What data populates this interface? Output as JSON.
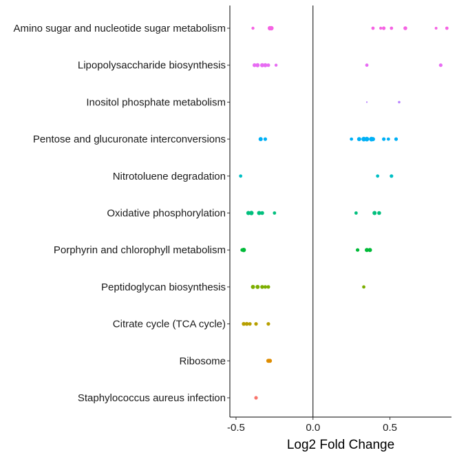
{
  "chart_data": {
    "type": "scatter",
    "title": "",
    "xlabel": "Log2 Fold Change",
    "ylabel": "",
    "xlim": [
      -0.54,
      0.9
    ],
    "x_ticks": [
      -0.5,
      0.0,
      0.5
    ],
    "x_tick_labels": [
      "-0.5",
      "0.0",
      "0.5"
    ],
    "vline_at": 0,
    "grid": false,
    "legend": "none",
    "categories": [
      "Amino sugar and nucleotide sugar metabolism",
      "Lipopolysaccharide biosynthesis",
      "Inositol phosphate metabolism",
      "Pentose and glucuronate interconversions",
      "Nitrotoluene degradation",
      "Oxidative phosphorylation",
      "Porphyrin and chlorophyll metabolism",
      "Peptidoglycan biosynthesis",
      "Citrate cycle (TCA cycle)",
      "Ribosome",
      "Staphylococcus aureus infection"
    ],
    "series": [
      {
        "category": "Amino sugar and nucleotide sugar metabolism",
        "color": "#F564E3",
        "points": [
          {
            "x": -0.39,
            "s": 2.2
          },
          {
            "x": -0.28,
            "s": 3.2
          },
          {
            "x": -0.27,
            "s": 3.2
          },
          {
            "x": 0.39,
            "s": 2.4
          },
          {
            "x": 0.44,
            "s": 2.2
          },
          {
            "x": 0.46,
            "s": 2.6
          },
          {
            "x": 0.51,
            "s": 2.4
          },
          {
            "x": 0.6,
            "s": 2.8
          },
          {
            "x": 0.8,
            "s": 2.0
          },
          {
            "x": 0.87,
            "s": 2.4
          }
        ]
      },
      {
        "category": "Lipopolysaccharide biosynthesis",
        "color": "#E76BF3",
        "points": [
          {
            "x": -0.38,
            "s": 2.8
          },
          {
            "x": -0.36,
            "s": 3.0
          },
          {
            "x": -0.33,
            "s": 3.0
          },
          {
            "x": -0.31,
            "s": 3.0
          },
          {
            "x": -0.29,
            "s": 2.6
          },
          {
            "x": -0.24,
            "s": 2.2
          },
          {
            "x": 0.35,
            "s": 2.4
          },
          {
            "x": 0.83,
            "s": 2.6
          }
        ]
      },
      {
        "category": "Inositol phosphate metabolism",
        "color": "#B983FF",
        "points": [
          {
            "x": 0.35,
            "s": 1.1
          },
          {
            "x": 0.56,
            "s": 1.8
          }
        ]
      },
      {
        "category": "Pentose and glucuronate interconversions",
        "color": "#00B0F6",
        "points": [
          {
            "x": -0.34,
            "s": 3.0
          },
          {
            "x": -0.31,
            "s": 2.6
          },
          {
            "x": 0.25,
            "s": 2.4
          },
          {
            "x": 0.3,
            "s": 3.0
          },
          {
            "x": 0.33,
            "s": 3.4
          },
          {
            "x": 0.35,
            "s": 3.4
          },
          {
            "x": 0.38,
            "s": 3.4
          },
          {
            "x": 0.39,
            "s": 3.0
          },
          {
            "x": 0.46,
            "s": 2.6
          },
          {
            "x": 0.49,
            "s": 2.4
          },
          {
            "x": 0.54,
            "s": 2.6
          }
        ]
      },
      {
        "category": "Nitrotoluene degradation",
        "color": "#00BFC4",
        "points": [
          {
            "x": -0.47,
            "s": 2.4
          },
          {
            "x": 0.42,
            "s": 2.4
          },
          {
            "x": 0.51,
            "s": 2.6
          }
        ]
      },
      {
        "category": "Oxidative phosphorylation",
        "color": "#00BF7D",
        "points": [
          {
            "x": -0.42,
            "s": 3.0
          },
          {
            "x": -0.4,
            "s": 3.2
          },
          {
            "x": -0.35,
            "s": 3.0
          },
          {
            "x": -0.33,
            "s": 2.8
          },
          {
            "x": -0.25,
            "s": 2.4
          },
          {
            "x": 0.28,
            "s": 2.4
          },
          {
            "x": 0.4,
            "s": 3.0
          },
          {
            "x": 0.43,
            "s": 2.8
          }
        ]
      },
      {
        "category": "Porphyrin and chlorophyll metabolism",
        "color": "#00BA38",
        "points": [
          {
            "x": -0.45,
            "s": 3.2
          },
          {
            "x": -0.46,
            "s": 2.6
          },
          {
            "x": 0.29,
            "s": 2.6
          },
          {
            "x": 0.35,
            "s": 3.0
          },
          {
            "x": 0.37,
            "s": 3.0
          }
        ]
      },
      {
        "category": "Peptidoglycan biosynthesis",
        "color": "#7CAE00",
        "points": [
          {
            "x": -0.39,
            "s": 3.0
          },
          {
            "x": -0.36,
            "s": 3.0
          },
          {
            "x": -0.33,
            "s": 2.8
          },
          {
            "x": -0.31,
            "s": 2.6
          },
          {
            "x": -0.29,
            "s": 2.6
          },
          {
            "x": 0.33,
            "s": 2.4
          }
        ]
      },
      {
        "category": "Citrate cycle (TCA cycle)",
        "color": "#B79F00",
        "points": [
          {
            "x": -0.45,
            "s": 2.8
          },
          {
            "x": -0.43,
            "s": 2.8
          },
          {
            "x": -0.41,
            "s": 2.6
          },
          {
            "x": -0.37,
            "s": 2.6
          },
          {
            "x": -0.29,
            "s": 2.6
          }
        ]
      },
      {
        "category": "Ribosome",
        "color": "#DE8C00",
        "points": [
          {
            "x": -0.29,
            "s": 3.0
          },
          {
            "x": -0.28,
            "s": 3.0
          }
        ]
      },
      {
        "category": "Staphylococcus aureus infection",
        "color": "#F8766D",
        "points": [
          {
            "x": -0.37,
            "s": 2.6
          }
        ]
      }
    ]
  }
}
